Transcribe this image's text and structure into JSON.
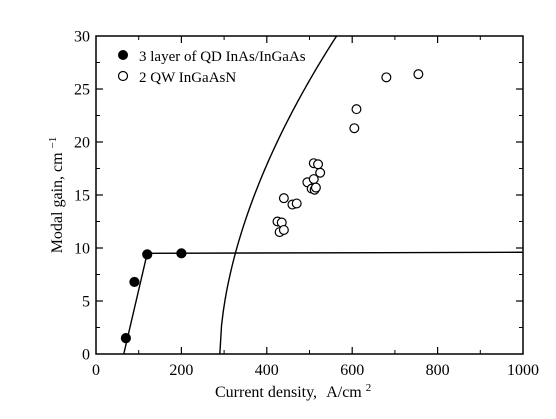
{
  "chart_data": {
    "type": "scatter",
    "xlabel": "Current density,",
    "xlabel_unit_main": "A/cm",
    "xlabel_unit_sup": "2",
    "ylabel": "Modal gain, cm",
    "ylabel_sup": "−1",
    "xlim": [
      0,
      1000
    ],
    "ylim": [
      0,
      30
    ],
    "x_ticks": [
      0,
      200,
      400,
      600,
      800,
      1000
    ],
    "y_ticks": [
      0,
      5,
      10,
      15,
      20,
      25,
      30
    ],
    "x_tick_labels": [
      "0",
      "200",
      "400",
      "600",
      "800",
      "1000"
    ],
    "y_tick_labels": [
      "0",
      "5",
      "10",
      "15",
      "20",
      "25",
      "30"
    ],
    "grid": false,
    "legend_position": "top-left",
    "series": [
      {
        "name": "3 layer of QD InAs/InGaAs",
        "marker": "filled-circle",
        "color": "#000000",
        "points": [
          [
            70,
            1.5
          ],
          [
            90,
            6.8
          ],
          [
            120,
            9.4
          ],
          [
            200,
            9.5
          ]
        ],
        "fit_line": [
          [
            65,
            0
          ],
          [
            120,
            9.5
          ],
          [
            1000,
            9.6
          ]
        ]
      },
      {
        "name": "2 QW InGaAsN",
        "marker": "open-circle",
        "color": "#000000",
        "points": [
          [
            425,
            12.5
          ],
          [
            430,
            11.5
          ],
          [
            435,
            12.4
          ],
          [
            440,
            14.7
          ],
          [
            440,
            11.7
          ],
          [
            460,
            14.1
          ],
          [
            470,
            14.2
          ],
          [
            495,
            16.2
          ],
          [
            505,
            15.6
          ],
          [
            510,
            18.0
          ],
          [
            510,
            16.5
          ],
          [
            512,
            15.5
          ],
          [
            515,
            15.7
          ],
          [
            520,
            17.9
          ],
          [
            525,
            17.1
          ],
          [
            605,
            21.3
          ],
          [
            610,
            23.1
          ],
          [
            680,
            26.1
          ],
          [
            755,
            26.4
          ]
        ],
        "fit_curve": {
          "x0": 290,
          "scale": 1.225,
          "exponent": 0.57,
          "x_end": 785
        }
      }
    ]
  }
}
